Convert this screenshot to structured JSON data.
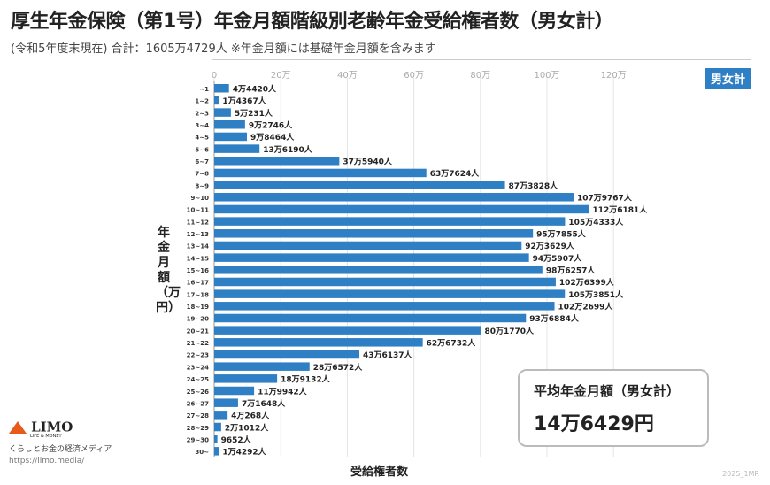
{
  "header": {
    "title": "厚生年金保険（第1号）年金月額階級別老齢年金受給権者数（男女計）",
    "subtitle": "(令和5年度末現在) 合計：1605万4729人 ※年金月額には基礎年金月額を含みます",
    "badge": "男女計"
  },
  "average": {
    "label": "平均年金月額（男女計）",
    "value": "14万6429円"
  },
  "logo": {
    "name": "LIMO",
    "sub": "LIFE & MONEY",
    "tagline": "くらしとお金の経済メディア",
    "url": "https://limo.media/"
  },
  "watermark": "2025_1MR",
  "chart_data": {
    "type": "bar",
    "orientation": "horizontal",
    "title": "厚生年金保険（第1号）年金月額階級別老齢年金受給権者数（男女計）",
    "xlabel": "受給権者数",
    "ylabel": "年金月額（万円）",
    "xlim": [
      0,
      120
    ],
    "x_unit": "万人",
    "xticks": [
      "0",
      "20万",
      "40万",
      "60万",
      "80万",
      "100万",
      "120万"
    ],
    "grid": true,
    "bar_color": "#2f7fc4",
    "categories": [
      "~1",
      "1~2",
      "2~3",
      "3~4",
      "4~5",
      "5~6",
      "6~7",
      "7~8",
      "8~9",
      "9~10",
      "10~11",
      "11~12",
      "12~13",
      "13~14",
      "14~15",
      "15~16",
      "16~17",
      "17~18",
      "18~19",
      "19~20",
      "20~21",
      "21~22",
      "22~23",
      "23~24",
      "24~25",
      "25~26",
      "26~27",
      "27~28",
      "28~29",
      "29~30",
      "30~"
    ],
    "values": [
      44420,
      14367,
      50231,
      92746,
      98464,
      136190,
      375940,
      637624,
      873828,
      1079767,
      1126181,
      1054333,
      957855,
      923629,
      945907,
      986257,
      1026399,
      1053851,
      1022699,
      936884,
      801770,
      626732,
      436137,
      286572,
      189132,
      119942,
      71648,
      40268,
      21012,
      9652,
      14292
    ],
    "data_labels": [
      "4万4420人",
      "1万4367人",
      "5万231人",
      "9万2746人",
      "9万8464人",
      "13万6190人",
      "37万5940人",
      "63万7624人",
      "87万3828人",
      "107万9767人",
      "112万6181人",
      "105万4333人",
      "95万7855人",
      "92万3629人",
      "94万5907人",
      "98万6257人",
      "102万6399人",
      "105万3851人",
      "102万2699人",
      "93万6884人",
      "80万1770人",
      "62万6732人",
      "43万6137人",
      "28万6572人",
      "18万9132人",
      "11万9942人",
      "7万1648人",
      "4万268人",
      "2万1012人",
      "9652人",
      "1万4292人"
    ]
  }
}
